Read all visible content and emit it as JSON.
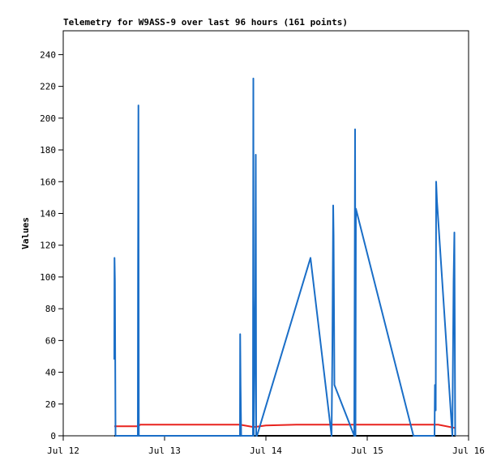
{
  "chart_data": {
    "type": "line",
    "title": "Telemetry for W9ASS-9 over last 96 hours (161 points)",
    "y_label": "Values",
    "xlim": [
      0,
      4
    ],
    "xticks": [
      {
        "value": 0,
        "label": "Jul 12"
      },
      {
        "value": 1,
        "label": "Jul 13"
      },
      {
        "value": 2,
        "label": "Jul 14"
      },
      {
        "value": 3,
        "label": "Jul 15"
      },
      {
        "value": 4,
        "label": "Jul 16"
      }
    ],
    "ylim": [
      0,
      255
    ],
    "yticks": [
      0,
      20,
      40,
      60,
      80,
      100,
      120,
      140,
      160,
      180,
      200,
      220,
      240
    ],
    "series": [
      {
        "color": "#000000",
        "x": [
          0.504,
          3.872
        ],
        "values": [
          0,
          0
        ]
      },
      {
        "color": "#e8231e",
        "x": [
          0.504,
          0.736,
          0.76,
          1.744,
          1.88,
          2.0,
          2.3,
          3.4,
          3.7,
          3.86,
          3.872
        ],
        "values": [
          6,
          6,
          7,
          7,
          5.5,
          6.5,
          7,
          7,
          7,
          5,
          5
        ]
      },
      {
        "color": "#1a6ec7",
        "x": [
          0.504,
          0.506,
          0.51,
          0.516,
          0.736,
          0.738,
          0.742,
          0.746,
          1.744,
          1.746,
          1.75,
          1.756,
          1.872,
          1.876,
          1.88,
          1.896,
          1.9,
          1.904,
          1.912,
          2.44,
          2.648,
          2.656,
          2.664,
          2.668,
          2.676,
          2.872,
          2.88,
          2.884,
          2.888,
          3.456,
          3.664,
          3.668,
          3.676,
          3.68,
          3.688,
          3.84,
          3.852,
          3.86,
          3.868
        ],
        "values": [
          48,
          112,
          97,
          0,
          0,
          104,
          208,
          0,
          0,
          64,
          32,
          0,
          0,
          225,
          0,
          88,
          177,
          0,
          0,
          112,
          0,
          55,
          145,
          126,
          32,
          0,
          193,
          0,
          143,
          0,
          0,
          32,
          16,
          160,
          148,
          0,
          97,
          128,
          0
        ]
      }
    ]
  }
}
